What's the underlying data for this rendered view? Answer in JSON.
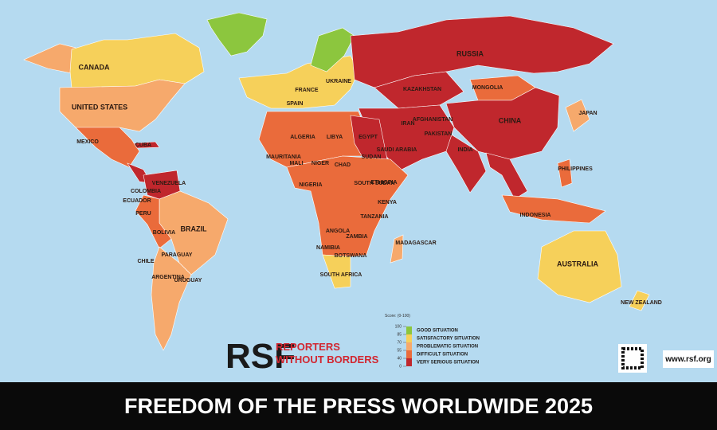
{
  "title": "FREEDOM OF THE PRESS WORLDWIDE 2025",
  "logo": {
    "mark": "RSF",
    "line1": "REPORTERS",
    "line2": "WITHOUT BORDERS"
  },
  "website": "www.rsf.org",
  "legend": {
    "scale_label": "Score: (0-100)",
    "ticks": [
      100,
      85,
      70,
      55,
      40,
      0
    ],
    "categories": [
      {
        "label": "GOOD SITUATION",
        "color": "#8cc63e"
      },
      {
        "label": "SATISFACTORY SITUATION",
        "color": "#f6d05a"
      },
      {
        "label": "PROBLEMATIC SITUATION",
        "color": "#f6a96c"
      },
      {
        "label": "DIFFICULT SITUATION",
        "color": "#ea6b3b"
      },
      {
        "label": "VERY SERIOUS SITUATION",
        "color": "#c0272d"
      }
    ]
  },
  "countries": [
    "RUSSIA",
    "CANADA",
    "UNITED STATES",
    "CHINA",
    "BRAZIL",
    "AUSTRALIA",
    "MEXICO",
    "INDIA",
    "KAZAKHSTAN",
    "MONGOLIA",
    "ALGERIA",
    "LIBYA",
    "EGYPT",
    "NIGER",
    "CHAD",
    "SUDAN",
    "MALI",
    "ANGOLA",
    "ARGENTINA",
    "PERU",
    "BOLIVIA",
    "COLOMBIA",
    "VENEZUELA",
    "INDONESIA",
    "SAUDI ARABIA",
    "IRAN",
    "NEW ZEALAND",
    "PHILIPPINES",
    "SOUTH AFRICA",
    "MADAGASCAR",
    "ETHIOPIA",
    "TANZANIA",
    "CHILE",
    "PARAGUAY",
    "URUGUAY",
    "ECUADOR",
    "CUBA",
    "NIGERIA",
    "KENYA",
    "ZAMBIA",
    "NAMIBIA",
    "BOTSWANA",
    "JAPAN",
    "MAURITANIA",
    "SOUTH SUDAN",
    "PAKISTAN",
    "AFGHANISTAN",
    "SPAIN",
    "FRANCE",
    "UKRAINE"
  ]
}
